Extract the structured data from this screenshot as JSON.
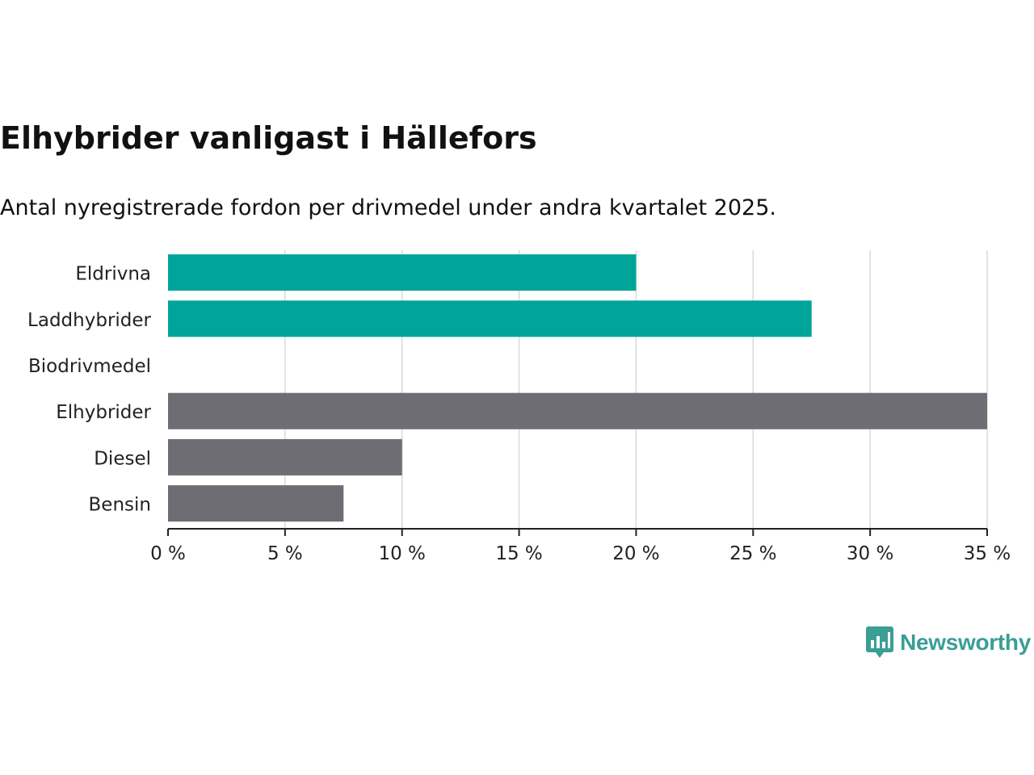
{
  "title": "Elhybrider vanligast i Hällefors",
  "subtitle": "Antal nyregistrerade fordon per drivmedel under andra kvartalet 2025.",
  "brand": {
    "name": "Newsworthy",
    "color": "#3a9e95",
    "icon": "bar-chart-speech-bubble-icon"
  },
  "colors": {
    "highlight": "#00a499",
    "default": "#6e6d73",
    "grid": "#d9d9d9",
    "axis": "#222222"
  },
  "chart_data": {
    "type": "bar",
    "orientation": "horizontal",
    "categories": [
      "Eldrivna",
      "Laddhybrider",
      "Biodrivmedel",
      "Elhybrider",
      "Diesel",
      "Bensin"
    ],
    "values": [
      20,
      27.5,
      0,
      35,
      10,
      7.5
    ],
    "highlighted": [
      true,
      true,
      true,
      false,
      false,
      false
    ],
    "xlim": [
      0,
      35
    ],
    "xticks": [
      0,
      5,
      10,
      15,
      20,
      25,
      30,
      35
    ],
    "xtick_labels": [
      "0 %",
      "5 %",
      "10 %",
      "15 %",
      "20 %",
      "25 %",
      "30 %",
      "35 %"
    ],
    "xlabel": "",
    "ylabel": "",
    "grid": "vertical",
    "legend": "none"
  }
}
